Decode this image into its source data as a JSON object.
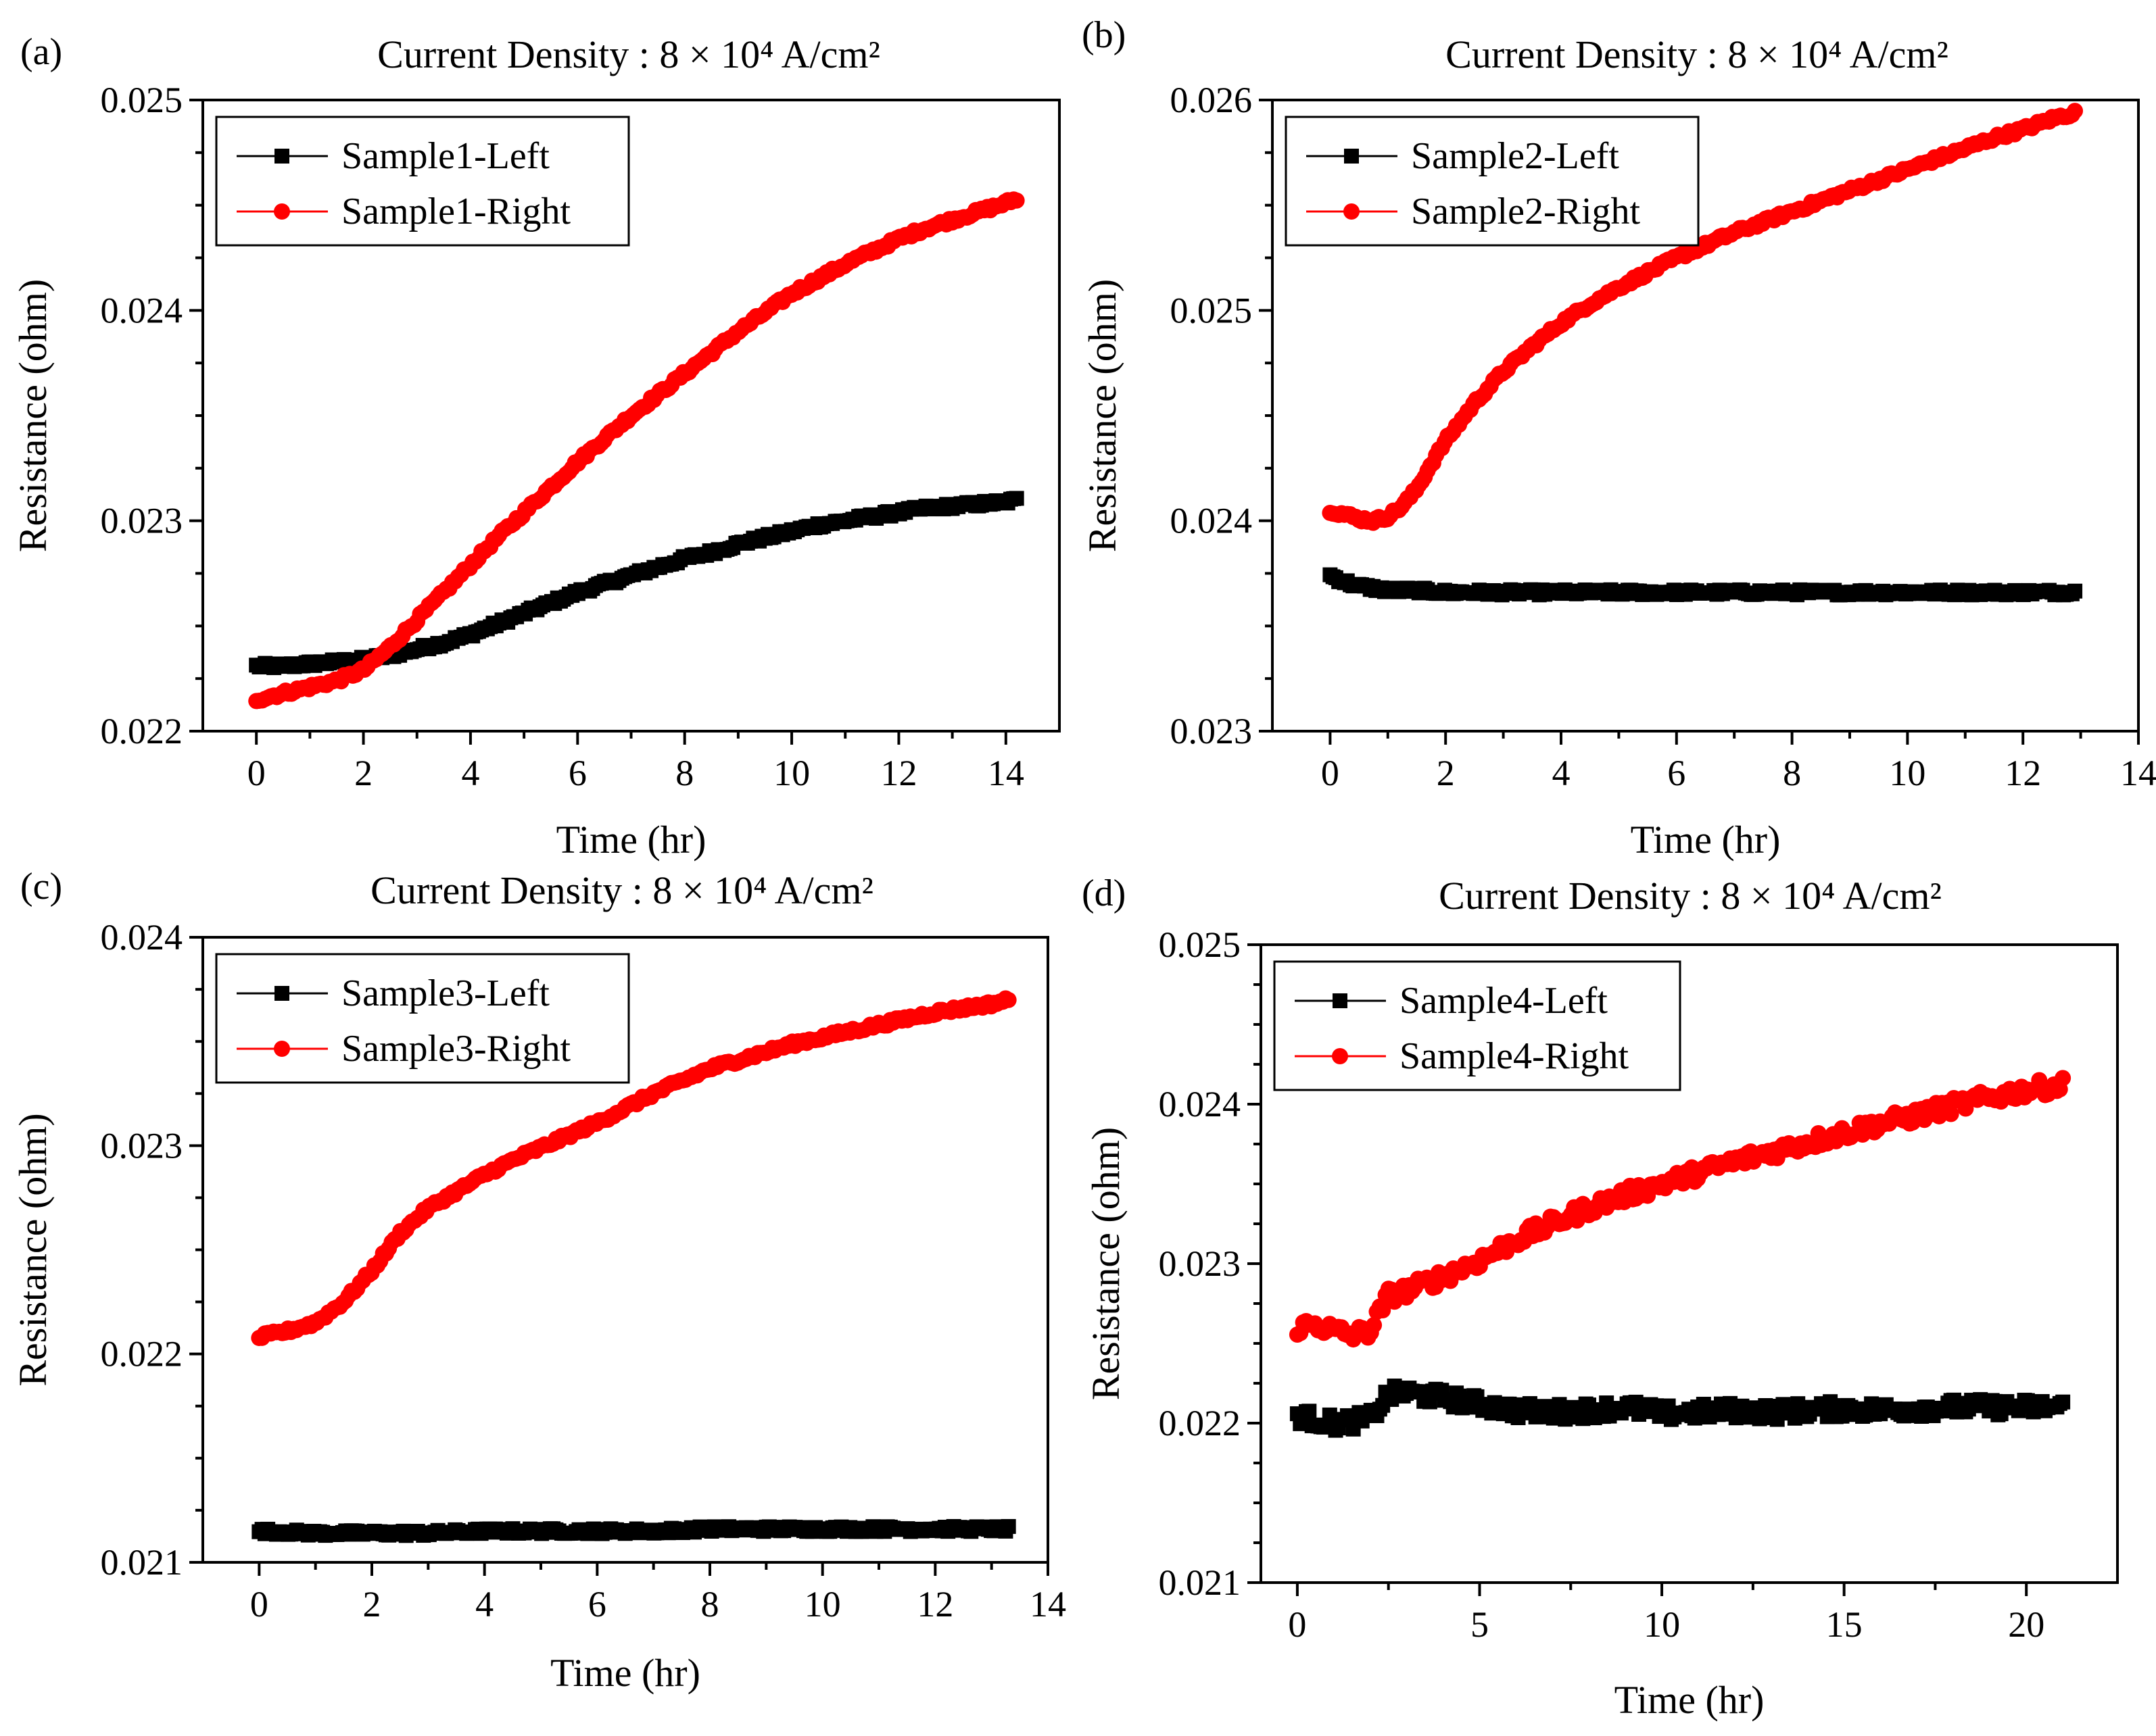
{
  "colors": {
    "left": "#000000",
    "right": "#ff0000"
  },
  "chart_data": [
    {
      "type": "scatter",
      "panel_label": "(a)",
      "title": "Current Density : 8 × 10⁴ A/cm²",
      "xlabel": "Time (hr)",
      "ylabel": "Resistance (ohm)",
      "xlim": [
        -1,
        15
      ],
      "ylim": [
        0.022,
        0.025
      ],
      "xticks": [
        0,
        2,
        4,
        6,
        8,
        10,
        12,
        14
      ],
      "yticks": [
        0.022,
        0.023,
        0.024,
        0.025
      ],
      "xtick_labels": [
        "0",
        "2",
        "4",
        "6",
        "8",
        "10",
        "12",
        "14"
      ],
      "ytick_labels": [
        "0.022",
        "0.023",
        "0.024",
        "0.025"
      ],
      "legend_position": "top-left",
      "series": [
        {
          "name": "Sample1-Left",
          "color": "#000000",
          "marker": "square",
          "x": [
            0,
            0.5,
            1,
            1.5,
            2,
            2.5,
            3,
            3.5,
            4,
            4.5,
            5,
            5.5,
            6,
            6.5,
            7,
            7.5,
            8,
            8.5,
            9,
            9.5,
            10,
            10.5,
            11,
            11.5,
            12,
            12.5,
            13,
            13.5,
            14,
            14.2
          ],
          "y": [
            0.02231,
            0.02231,
            0.02232,
            0.02233,
            0.02234,
            0.02236,
            0.02239,
            0.02242,
            0.02246,
            0.02251,
            0.02256,
            0.02261,
            0.02266,
            0.0227,
            0.02274,
            0.02278,
            0.02282,
            0.02285,
            0.02289,
            0.02292,
            0.02295,
            0.02298,
            0.023,
            0.02302,
            0.02304,
            0.02306,
            0.02307,
            0.02308,
            0.02309,
            0.0231
          ]
        },
        {
          "name": "Sample1-Right",
          "color": "#ff0000",
          "marker": "circle",
          "x": [
            0,
            0.5,
            1,
            1.5,
            2,
            2.5,
            3,
            3.5,
            4,
            4.5,
            5,
            5.5,
            6,
            6.5,
            7,
            7.5,
            8,
            8.5,
            9,
            9.5,
            10,
            10.5,
            11,
            11.5,
            12,
            12.5,
            13,
            13.5,
            14,
            14.2
          ],
          "y": [
            0.02215,
            0.02218,
            0.02221,
            0.02224,
            0.02229,
            0.0224,
            0.02253,
            0.02266,
            0.02279,
            0.02292,
            0.02304,
            0.02316,
            0.02328,
            0.02339,
            0.0235,
            0.0236,
            0.0237,
            0.0238,
            0.0239,
            0.02399,
            0.02408,
            0.02415,
            0.02422,
            0.02428,
            0.02434,
            0.02439,
            0.02443,
            0.02447,
            0.02451,
            0.02453
          ]
        }
      ]
    },
    {
      "type": "scatter",
      "panel_label": "(b)",
      "title": "Current Density : 8 × 10⁴ A/cm²",
      "xlabel": "Time (hr)",
      "ylabel": "Resistance (ohm)",
      "xlim": [
        -1,
        14
      ],
      "ylim": [
        0.023,
        0.026
      ],
      "xticks": [
        0,
        2,
        4,
        6,
        8,
        10,
        12,
        14
      ],
      "yticks": [
        0.023,
        0.024,
        0.025,
        0.026
      ],
      "xtick_labels": [
        "0",
        "2",
        "4",
        "6",
        "8",
        "10",
        "12",
        "14"
      ],
      "ytick_labels": [
        "0.023",
        "0.024",
        "0.025",
        "0.026"
      ],
      "legend_position": "top-left",
      "series": [
        {
          "name": "Sample2-Left",
          "color": "#000000",
          "marker": "square",
          "x": [
            0,
            0.25,
            0.5,
            0.75,
            1,
            1.5,
            2,
            2.5,
            3,
            3.5,
            4,
            5,
            6,
            7,
            8,
            9,
            10,
            11,
            12,
            12.9
          ],
          "y": [
            0.02374,
            0.02371,
            0.02369,
            0.02368,
            0.02367,
            0.02367,
            0.02366,
            0.02366,
            0.02366,
            0.02366,
            0.02366,
            0.02366,
            0.02366,
            0.02366,
            0.02366,
            0.02366,
            0.02366,
            0.02366,
            0.02366,
            0.02366
          ]
        },
        {
          "name": "Sample2-Right",
          "color": "#ff0000",
          "marker": "circle",
          "x": [
            0,
            0.25,
            0.5,
            0.75,
            1,
            1.25,
            1.5,
            1.75,
            2,
            2.5,
            3,
            3.5,
            4,
            4.5,
            5,
            5.5,
            6,
            6.5,
            7,
            7.5,
            8,
            8.5,
            9,
            9.5,
            10,
            10.5,
            11,
            11.5,
            12,
            12.5,
            12.9
          ],
          "y": [
            0.02405,
            0.02403,
            0.02401,
            0.024,
            0.02402,
            0.02407,
            0.02415,
            0.02427,
            0.02438,
            0.02456,
            0.02471,
            0.02483,
            0.02494,
            0.02503,
            0.02511,
            0.02518,
            0.02525,
            0.02531,
            0.02537,
            0.02542,
            0.02547,
            0.02552,
            0.02557,
            0.02562,
            0.02567,
            0.02572,
            0.02577,
            0.02582,
            0.02586,
            0.02591,
            0.02594
          ]
        }
      ]
    },
    {
      "type": "scatter",
      "panel_label": "(c)",
      "title": "Current Density : 8 × 10⁴ A/cm²",
      "xlabel": "Time (hr)",
      "ylabel": "Resistance (ohm)",
      "xlim": [
        -1,
        14
      ],
      "ylim": [
        0.021,
        0.024
      ],
      "xticks": [
        0,
        2,
        4,
        6,
        8,
        10,
        12,
        14
      ],
      "yticks": [
        0.021,
        0.022,
        0.023,
        0.024
      ],
      "xtick_labels": [
        "0",
        "2",
        "4",
        "6",
        "8",
        "10",
        "12",
        "14"
      ],
      "ytick_labels": [
        "0.021",
        "0.022",
        "0.023",
        "0.024"
      ],
      "legend_position": "top-left",
      "series": [
        {
          "name": "Sample3-Left",
          "color": "#000000",
          "marker": "square",
          "x": [
            0,
            1,
            2,
            3,
            4,
            5,
            6,
            7,
            8,
            9,
            10,
            11,
            12,
            13,
            13.3
          ],
          "y": [
            0.02115,
            0.02114,
            0.02114,
            0.02114,
            0.02115,
            0.02115,
            0.02115,
            0.02115,
            0.02116,
            0.02116,
            0.02116,
            0.02116,
            0.02116,
            0.02116,
            0.02116
          ]
        },
        {
          "name": "Sample3-Right",
          "color": "#ff0000",
          "marker": "circle",
          "x": [
            0,
            0.5,
            1,
            1.5,
            2,
            2.5,
            3,
            3.5,
            4,
            4.5,
            5,
            5.5,
            6,
            6.5,
            7,
            7.5,
            8,
            8.5,
            9,
            9.5,
            10,
            10.5,
            11,
            11.5,
            12,
            12.5,
            13,
            13.3
          ],
          "y": [
            0.02208,
            0.02211,
            0.02215,
            0.02225,
            0.0224,
            0.02258,
            0.0227,
            0.02278,
            0.02286,
            0.02293,
            0.02299,
            0.02305,
            0.02311,
            0.02318,
            0.02325,
            0.02331,
            0.02337,
            0.02341,
            0.02345,
            0.02349,
            0.02352,
            0.02355,
            0.02358,
            0.02361,
            0.02364,
            0.02366,
            0.02368,
            0.0237
          ]
        }
      ]
    },
    {
      "type": "scatter",
      "panel_label": "(d)",
      "title": "Current Density : 8 × 10⁴ A/cm²",
      "xlabel": "Time (hr)",
      "ylabel": "Resistance (ohm)",
      "xlim": [
        -1,
        22.5
      ],
      "ylim": [
        0.021,
        0.025
      ],
      "xticks": [
        0,
        5,
        10,
        15,
        20
      ],
      "yticks": [
        0.021,
        0.022,
        0.023,
        0.024,
        0.025
      ],
      "xtick_labels": [
        "0",
        "5",
        "10",
        "15",
        "20"
      ],
      "ytick_labels": [
        "0.021",
        "0.022",
        "0.023",
        "0.024",
        "0.025"
      ],
      "legend_position": "top-left",
      "series": [
        {
          "name": "Sample4-Left",
          "color": "#000000",
          "marker": "square",
          "x": [
            0,
            0.5,
            1,
            1.5,
            2,
            2.5,
            3,
            4,
            5,
            6,
            7,
            8,
            9,
            10,
            11,
            12,
            13,
            14,
            15,
            16,
            17,
            18,
            19,
            20,
            21
          ],
          "y": [
            0.02205,
            0.02202,
            0.022,
            0.02201,
            0.02203,
            0.02218,
            0.02219,
            0.02216,
            0.02212,
            0.02208,
            0.02207,
            0.02208,
            0.0221,
            0.02206,
            0.02207,
            0.02208,
            0.02207,
            0.02208,
            0.02209,
            0.02208,
            0.02209,
            0.0221,
            0.0221,
            0.0221,
            0.0221
          ]
        },
        {
          "name": "Sample4-Right",
          "color": "#ff0000",
          "marker": "circle",
          "x": [
            0,
            0.5,
            1,
            1.5,
            2,
            2.5,
            3,
            4,
            5,
            6,
            7,
            8,
            9,
            10,
            11,
            12,
            13,
            14,
            15,
            16,
            17,
            18,
            19,
            20,
            21
          ],
          "y": [
            0.0226,
            0.02262,
            0.02258,
            0.02255,
            0.02258,
            0.0228,
            0.02283,
            0.02292,
            0.02302,
            0.02315,
            0.02325,
            0.02335,
            0.02343,
            0.0235,
            0.02357,
            0.02364,
            0.0237,
            0.02376,
            0.02382,
            0.02388,
            0.02393,
            0.02399,
            0.02404,
            0.02409,
            0.02412
          ]
        }
      ]
    }
  ]
}
